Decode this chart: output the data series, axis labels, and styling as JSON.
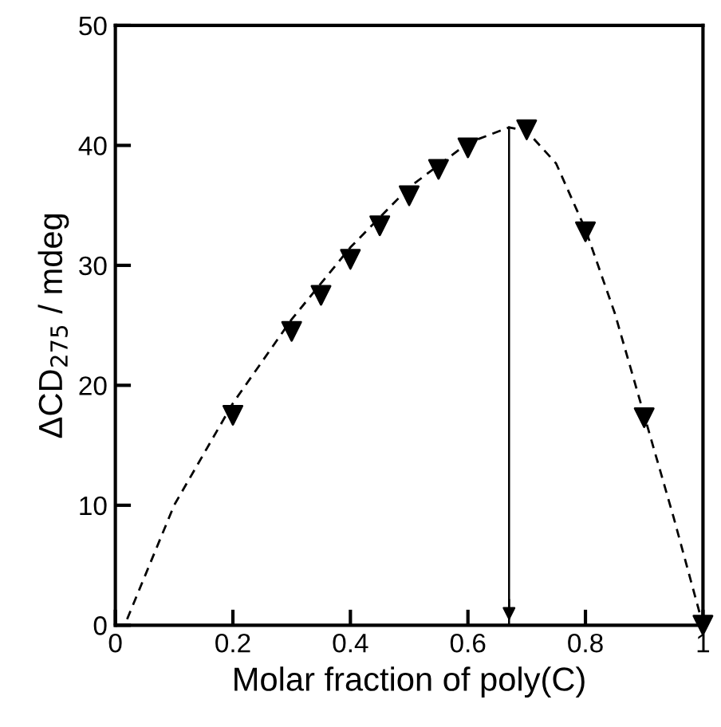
{
  "chart_data": {
    "type": "scatter",
    "xlabel": "Molar fraction of poly(C)",
    "ylabel": "ΔCD$_{275}$ / mdeg",
    "xlim": [
      0,
      1
    ],
    "ylim": [
      0,
      50
    ],
    "xticks": [
      0,
      0.2,
      0.4,
      0.6,
      0.8,
      1
    ],
    "yticks": [
      0,
      10,
      20,
      30,
      40,
      50
    ],
    "grid": false,
    "marker": "triangle",
    "series": [
      {
        "color": "#000000",
        "x": [
          0.2,
          0.3,
          0.35,
          0.4,
          0.45,
          0.5,
          0.55,
          0.6,
          0.7,
          0.8,
          0.9,
          1.0
        ],
        "values": [
          17.5,
          24.5,
          27.5,
          30.5,
          33.3,
          35.8,
          38,
          39.8,
          41.3,
          32.8,
          17.3,
          0
        ]
      },
      {
        "type": "line",
        "color": "#000000",
        "line_style": "dashed",
        "marker": "none",
        "x": [
          0.02,
          0.1,
          0.2,
          0.3,
          0.4,
          0.5,
          0.6,
          0.67,
          0.7,
          0.75,
          0.8,
          0.85,
          0.9,
          0.95,
          1.0
        ],
        "values": [
          0.5,
          10,
          18.5,
          25.5,
          31.5,
          36.5,
          40.2,
          41.5,
          41.2,
          38.5,
          33,
          26,
          17.5,
          9,
          0
        ]
      }
    ],
    "ref_lines": [
      {
        "axis": "x",
        "value": 0.67,
        "color": "#000000",
        "line_style": "solid"
      }
    ]
  }
}
